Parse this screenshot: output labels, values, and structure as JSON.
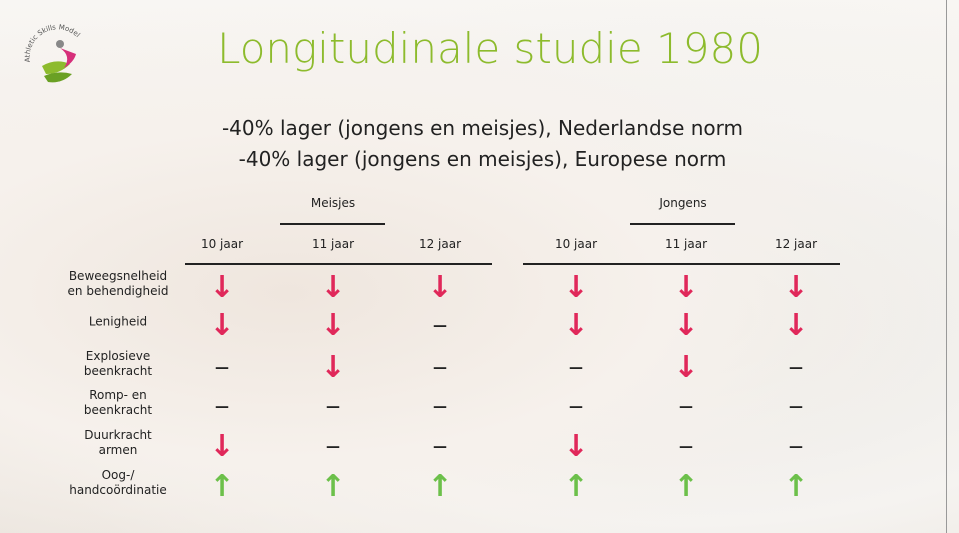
{
  "logo": {
    "text": "Athletic Skills Model"
  },
  "header": {
    "title": "Longitudinale studie 1980",
    "subtitles": [
      "-40% lager (jongens en meisjes), Nederlandse norm",
      "-40% lager (jongens en meisjes), Europese norm"
    ]
  },
  "table": {
    "groups": [
      {
        "name": "Meisjes",
        "columns": [
          "10 jaar",
          "11 jaar",
          "12 jaar"
        ]
      },
      {
        "name": "Jongens",
        "columns": [
          "10 jaar",
          "11 jaar",
          "12 jaar"
        ]
      }
    ],
    "rows": [
      {
        "label": "Beweegsnelheid\nen behendigheid",
        "cells": [
          "↓",
          "↓",
          "↓",
          "↓",
          "↓",
          "↓"
        ]
      },
      {
        "label": "Lenigheid",
        "cells": [
          "↓",
          "↓",
          "—",
          "↓",
          "↓",
          "↓"
        ]
      },
      {
        "label": "Explosieve\nbeenkracht",
        "cells": [
          "—",
          "↓",
          "—",
          "—",
          "↓",
          "—"
        ]
      },
      {
        "label": "Romp- en\nbeenkracht",
        "cells": [
          "—",
          "—",
          "—",
          "—",
          "—",
          "—"
        ]
      },
      {
        "label": "Duurkracht\narmen",
        "cells": [
          "↓",
          "—",
          "—",
          "↓",
          "—",
          "—"
        ]
      },
      {
        "label": "Oog-/\nhandcoördinatie",
        "cells": [
          "↑",
          "↑",
          "↑",
          "↑",
          "↑",
          "↑"
        ]
      }
    ]
  }
}
